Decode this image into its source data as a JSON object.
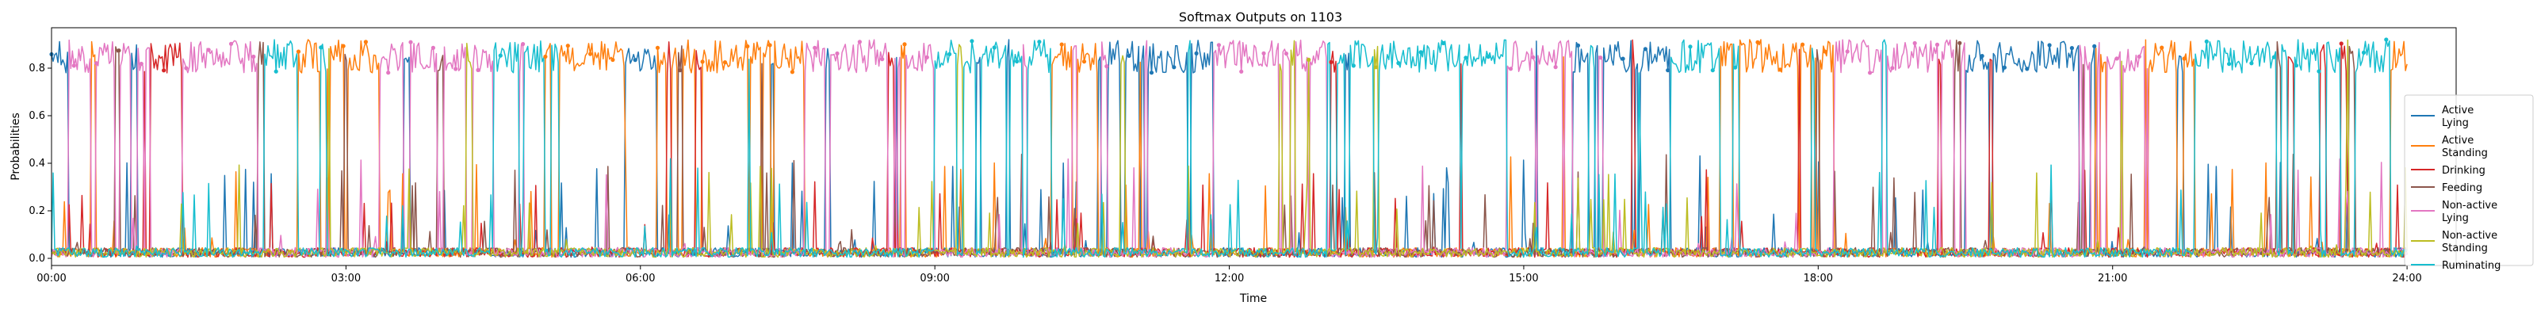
{
  "chart_data": {
    "type": "line",
    "title": "Softmax Outputs on 1103",
    "xlabel": "Time",
    "ylabel": "Probabilities",
    "xlim": [
      "00:00",
      "24:30"
    ],
    "ylim": [
      -0.03,
      0.97
    ],
    "x_ticks": [
      "00:00",
      "03:00",
      "06:00",
      "09:00",
      "12:00",
      "15:00",
      "18:00",
      "21:00",
      "24:00"
    ],
    "y_ticks": [
      "0.0",
      "0.2",
      "0.4",
      "0.6",
      "0.8"
    ],
    "grid": false,
    "legend_position": "right",
    "series": [
      {
        "name": "Active\nLying",
        "color": "#1f77b4"
      },
      {
        "name": "Active\nStanding",
        "color": "#ff7f0e"
      },
      {
        "name": "Drinking",
        "color": "#d62728"
      },
      {
        "name": "Feeding",
        "color": "#8c564b"
      },
      {
        "name": "Non-active\nLying",
        "color": "#e377c2"
      },
      {
        "name": "Non-active\nStanding",
        "color": "#bcbd22"
      },
      {
        "name": "Ruminating",
        "color": "#17becf"
      }
    ],
    "segments": [
      {
        "start": "00:00",
        "end": "00:10",
        "state": "Active\nLying"
      },
      {
        "start": "00:10",
        "end": "01:00",
        "state": "Non-active\nLying"
      },
      {
        "start": "01:00",
        "end": "01:20",
        "state": "Drinking"
      },
      {
        "start": "01:20",
        "end": "02:10",
        "state": "Non-active\nLying"
      },
      {
        "start": "02:10",
        "end": "02:30",
        "state": "Ruminating"
      },
      {
        "start": "02:30",
        "end": "03:20",
        "state": "Active\nStanding"
      },
      {
        "start": "03:20",
        "end": "04:30",
        "state": "Non-active\nLying"
      },
      {
        "start": "04:30",
        "end": "05:10",
        "state": "Ruminating"
      },
      {
        "start": "05:10",
        "end": "05:50",
        "state": "Active\nStanding"
      },
      {
        "start": "05:50",
        "end": "06:10",
        "state": "Active\nLying"
      },
      {
        "start": "06:10",
        "end": "07:40",
        "state": "Active\nStanding"
      },
      {
        "start": "07:40",
        "end": "09:00",
        "state": "Non-active\nLying"
      },
      {
        "start": "09:00",
        "end": "10:10",
        "state": "Ruminating"
      },
      {
        "start": "10:10",
        "end": "10:40",
        "state": "Active\nStanding"
      },
      {
        "start": "10:40",
        "end": "11:50",
        "state": "Active\nLying"
      },
      {
        "start": "11:50",
        "end": "13:00",
        "state": "Non-active\nLying"
      },
      {
        "start": "13:00",
        "end": "14:50",
        "state": "Ruminating"
      },
      {
        "start": "14:50",
        "end": "15:30",
        "state": "Non-active\nLying"
      },
      {
        "start": "15:30",
        "end": "16:30",
        "state": "Active\nLying"
      },
      {
        "start": "16:30",
        "end": "17:00",
        "state": "Ruminating"
      },
      {
        "start": "17:00",
        "end": "18:10",
        "state": "Active\nStanding"
      },
      {
        "start": "18:10",
        "end": "19:30",
        "state": "Non-active\nLying"
      },
      {
        "start": "19:30",
        "end": "20:40",
        "state": "Active\nLying"
      },
      {
        "start": "20:40",
        "end": "21:20",
        "state": "Non-active\nLying"
      },
      {
        "start": "21:20",
        "end": "21:50",
        "state": "Active\nStanding"
      },
      {
        "start": "21:50",
        "end": "23:50",
        "state": "Ruminating"
      },
      {
        "start": "23:50",
        "end": "24:10",
        "state": "Active\nStanding"
      }
    ]
  }
}
